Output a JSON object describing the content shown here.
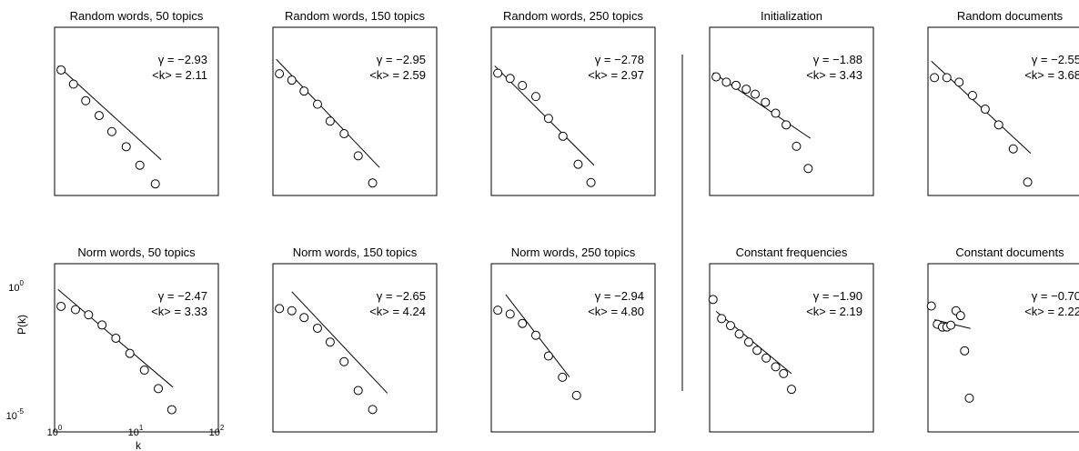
{
  "figure": {
    "ylabel": "P(k)",
    "xlabel": "k",
    "x_ticks": [
      {
        "base": "10",
        "exp": "0"
      },
      {
        "base": "10",
        "exp": "1"
      },
      {
        "base": "10",
        "exp": "2"
      }
    ],
    "y_ticks": [
      {
        "base": "10",
        "exp": "0"
      },
      {
        "base": "10",
        "exp": "-5"
      }
    ]
  },
  "chart_data": [
    {
      "type": "scatter",
      "title": "Random words, 50 topics",
      "gamma_label": "γ = −2.93",
      "k_label": "<k> = 2.11",
      "x_scale": "log",
      "y_scale": "log",
      "xlim": [
        1,
        100
      ],
      "ylim": [
        1e-05,
        10
      ],
      "points": [
        [
          1.2,
          0.3
        ],
        [
          1.7,
          0.094
        ],
        [
          2.4,
          0.024
        ],
        [
          3.5,
          0.0071
        ],
        [
          5.0,
          0.0019
        ],
        [
          7.5,
          0.00055
        ],
        [
          11.0,
          0.00012
        ],
        [
          17.0,
          2.6e-05
        ]
      ],
      "fit": {
        "x": [
          1.1,
          20.0
        ],
        "y": [
          0.42,
          0.00019
        ]
      }
    },
    {
      "type": "scatter",
      "title": "Random words, 150 topics",
      "gamma_label": "γ = −2.95",
      "k_label": "<k> = 2.59",
      "x_scale": "log",
      "y_scale": "log",
      "xlim": [
        1,
        100
      ],
      "ylim": [
        1e-05,
        10
      ],
      "points": [
        [
          1.2,
          0.22
        ],
        [
          1.7,
          0.13
        ],
        [
          2.4,
          0.053
        ],
        [
          3.5,
          0.018
        ],
        [
          5.0,
          0.0045
        ],
        [
          7.4,
          0.0016
        ],
        [
          11.0,
          0.00026
        ],
        [
          16.5,
          2.8e-05
        ]
      ],
      "fit": {
        "x": [
          1.1,
          20.0
        ],
        "y": [
          0.72,
          0.0001
        ]
      }
    },
    {
      "type": "scatter",
      "title": "Random words, 250 topics",
      "gamma_label": "γ = −2.78",
      "k_label": "<k> = 2.97",
      "x_scale": "log",
      "y_scale": "log",
      "xlim": [
        1,
        100
      ],
      "ylim": [
        1e-05,
        10
      ],
      "points": [
        [
          1.2,
          0.23
        ],
        [
          1.7,
          0.15
        ],
        [
          2.4,
          0.084
        ],
        [
          3.5,
          0.034
        ],
        [
          5.0,
          0.0056
        ],
        [
          7.5,
          0.0013
        ],
        [
          11.5,
          0.00013
        ],
        [
          16.5,
          2.9e-05
        ]
      ],
      "fit": {
        "x": [
          1.1,
          18.0
        ],
        "y": [
          0.42,
          0.00012
        ]
      }
    },
    {
      "type": "scatter",
      "title": "Initialization",
      "gamma_label": "γ = −1.88",
      "k_label": "<k> = 3.43",
      "x_scale": "log",
      "y_scale": "log",
      "xlim": [
        1,
        100
      ],
      "ylim": [
        1e-05,
        10
      ],
      "points": [
        [
          1.2,
          0.17
        ],
        [
          1.6,
          0.11
        ],
        [
          2.1,
          0.085
        ],
        [
          2.8,
          0.062
        ],
        [
          3.6,
          0.041
        ],
        [
          4.8,
          0.021
        ],
        [
          6.4,
          0.0086
        ],
        [
          8.6,
          0.0033
        ],
        [
          11.5,
          0.00057
        ],
        [
          16.0,
          9.2e-05
        ]
      ],
      "fit": {
        "x": [
          1.1,
          17.0
        ],
        "y": [
          0.24,
          0.0011
        ]
      }
    },
    {
      "type": "scatter",
      "title": "Random documents",
      "gamma_label": "γ = −2.55",
      "k_label": "<k> = 3.68",
      "x_scale": "log",
      "y_scale": "log",
      "xlim": [
        1,
        100
      ],
      "ylim": [
        1e-05,
        10
      ],
      "points": [
        [
          1.2,
          0.16
        ],
        [
          1.7,
          0.16
        ],
        [
          2.4,
          0.11
        ],
        [
          3.5,
          0.037
        ],
        [
          5.0,
          0.012
        ],
        [
          7.3,
          0.0033
        ],
        [
          11.0,
          0.00046
        ],
        [
          16.5,
          3e-05
        ]
      ],
      "fit": {
        "x": [
          1.1,
          18.0
        ],
        "y": [
          0.62,
          0.00032
        ]
      }
    },
    {
      "type": "scatter",
      "title": "Norm words, 50 topics",
      "gamma_label": "γ = −2.47",
      "k_label": "<k> = 3.33",
      "x_scale": "log",
      "y_scale": "log",
      "xlim": [
        1,
        100
      ],
      "ylim": [
        1e-05,
        10
      ],
      "points": [
        [
          1.2,
          0.3
        ],
        [
          1.8,
          0.23
        ],
        [
          2.6,
          0.15
        ],
        [
          3.8,
          0.065
        ],
        [
          5.6,
          0.022
        ],
        [
          8.3,
          0.0063
        ],
        [
          12.5,
          0.0016
        ],
        [
          18.5,
          0.00035
        ],
        [
          27.0,
          6.2e-05
        ]
      ],
      "fit": {
        "x": [
          1.1,
          28.0
        ],
        "y": [
          1.2,
          0.00039
        ]
      }
    },
    {
      "type": "scatter",
      "title": "Norm words, 150 topics",
      "gamma_label": "γ = −2.65",
      "k_label": "<k> = 4.24",
      "x_scale": "log",
      "y_scale": "log",
      "xlim": [
        1,
        100
      ],
      "ylim": [
        1e-05,
        10
      ],
      "points": [
        [
          1.2,
          0.25
        ],
        [
          1.7,
          0.21
        ],
        [
          2.4,
          0.12
        ],
        [
          3.5,
          0.05
        ],
        [
          5.0,
          0.016
        ],
        [
          7.4,
          0.0032
        ],
        [
          11.0,
          0.0003
        ],
        [
          16.5,
          6.3e-05
        ]
      ],
      "fit": {
        "x": [
          1.7,
          25.0
        ],
        "y": [
          1.0,
          0.00024
        ]
      }
    },
    {
      "type": "scatter",
      "title": "Norm words, 250 topics",
      "gamma_label": "γ = −2.94",
      "k_label": "<k> = 4.80",
      "x_scale": "log",
      "y_scale": "log",
      "xlim": [
        1,
        100
      ],
      "ylim": [
        1e-05,
        10
      ],
      "points": [
        [
          1.2,
          0.22
        ],
        [
          1.7,
          0.16
        ],
        [
          2.4,
          0.074
        ],
        [
          3.5,
          0.028
        ],
        [
          5.0,
          0.0051
        ],
        [
          7.4,
          0.00089
        ],
        [
          11.0,
          0.0002
        ]
      ],
      "fit": {
        "x": [
          1.5,
          9.0
        ],
        "y": [
          0.79,
          0.00091
        ]
      }
    },
    {
      "type": "scatter",
      "title": "Constant frequencies",
      "gamma_label": "γ = −1.90",
      "k_label": "<k> = 2.19",
      "x_scale": "log",
      "y_scale": "log",
      "xlim": [
        1,
        100
      ],
      "ylim": [
        1e-05,
        10
      ],
      "points": [
        [
          1.1,
          0.53
        ],
        [
          1.4,
          0.11
        ],
        [
          1.8,
          0.062
        ],
        [
          2.3,
          0.031
        ],
        [
          3.0,
          0.016
        ],
        [
          3.8,
          0.0081
        ],
        [
          4.9,
          0.0043
        ],
        [
          6.4,
          0.0021
        ],
        [
          8.0,
          0.0012
        ],
        [
          10.0,
          0.00033
        ]
      ],
      "fit": {
        "x": [
          1.2,
          10.0
        ],
        "y": [
          0.2,
          0.0012
        ]
      }
    },
    {
      "type": "scatter",
      "title": "Constant documents",
      "gamma_label": "γ = −0.70",
      "k_label": "<k> = 2.22",
      "x_scale": "log",
      "y_scale": "log",
      "xlim": [
        1,
        100
      ],
      "ylim": [
        1e-05,
        10
      ],
      "points": [
        [
          1.1,
          0.31
        ],
        [
          1.3,
          0.069
        ],
        [
          1.5,
          0.055
        ],
        [
          1.7,
          0.055
        ],
        [
          1.9,
          0.064
        ],
        [
          2.2,
          0.21
        ],
        [
          2.5,
          0.14
        ],
        [
          2.8,
          0.0078
        ],
        [
          3.2,
          0.00016
        ]
      ],
      "fit": {
        "x": [
          1.2,
          3.3
        ],
        "y": [
          0.1,
          0.049
        ]
      }
    }
  ]
}
